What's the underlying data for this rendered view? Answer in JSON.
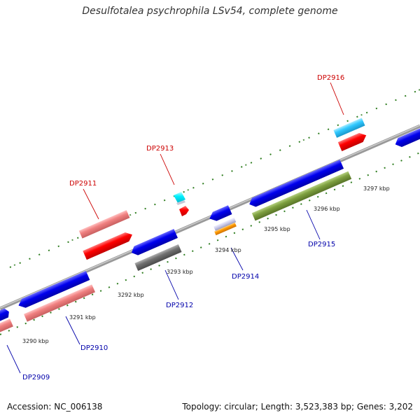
{
  "title": "Desulfotalea psychrophila LSv54, complete genome",
  "footer": {
    "accession": "Accession: NC_006138",
    "topology": "Topology: circular; Length: 3,523,383 bp; Genes: 3,202"
  },
  "colors": {
    "backbone": "#888888",
    "tick": "#2e7d1f",
    "label_top": "#cc0000",
    "label_bottom": "#0000aa"
  },
  "scale_labels": [
    "3290 kbp",
    "3291 kbp",
    "3292 kbp",
    "3293 kbp",
    "3294 kbp",
    "3295 kbp",
    "3296 kbp",
    "3297 kbp"
  ],
  "gene_labels": [
    {
      "id": "DP2909",
      "strand": "bottom"
    },
    {
      "id": "DP2910",
      "strand": "bottom"
    },
    {
      "id": "DP2911",
      "strand": "top"
    },
    {
      "id": "DP2912",
      "strand": "bottom"
    },
    {
      "id": "DP2913",
      "strand": "top"
    },
    {
      "id": "DP2914",
      "strand": "bottom"
    },
    {
      "id": "DP2915",
      "strand": "bottom"
    },
    {
      "id": "DP2916",
      "strand": "top"
    }
  ]
}
